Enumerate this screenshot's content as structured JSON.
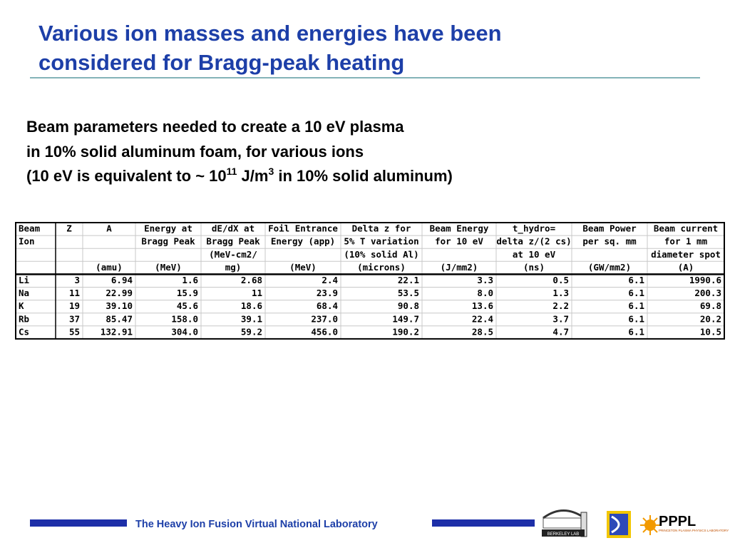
{
  "title": {
    "lines": [
      "Various ion masses and energies have been",
      "considered for Bragg-peak heating"
    ]
  },
  "subtitle": {
    "line1": "Beam parameters needed to create a 10 eV plasma",
    "line2": "in 10% solid aluminum foam, for various ions",
    "line3": {
      "part1": "(10 eV is equivalent to ~ 10",
      "sup1": "11",
      "part2": " J/m",
      "sup2": "3",
      "part3": " in 10% solid aluminum)"
    }
  },
  "table": {
    "header": [
      [
        "Beam",
        "Z",
        "A",
        "Energy at",
        "dE/dX at",
        "Foil Entrance",
        "Delta z for",
        "Beam Energy",
        "t_hydro=",
        "Beam Power",
        "Beam current"
      ],
      [
        "Ion",
        null,
        null,
        "Bragg Peak",
        "Bragg Peak",
        "Energy (app)",
        "5% T variation",
        "for 10 eV",
        "delta z/(2 cs)",
        "per sq. mm",
        "for 1 mm"
      ],
      [
        null,
        null,
        null,
        null,
        "(MeV-cm2/",
        null,
        "(10% solid Al)",
        null,
        "at 10 eV",
        null,
        "diameter spot"
      ],
      [
        null,
        null,
        "(amu)",
        "(MeV)",
        "mg)",
        "(MeV)",
        "(microns)",
        "(J/mm2)",
        "(ns)",
        "(GW/mm2)",
        "(A)"
      ]
    ],
    "rows": [
      [
        "Li",
        "3",
        "6.94",
        "1.6",
        "2.68",
        "2.4",
        "22.1",
        "3.3",
        "0.5",
        "6.1",
        "1990.6"
      ],
      [
        "Na",
        "11",
        "22.99",
        "15.9",
        "11",
        "23.9",
        "53.5",
        "8.0",
        "1.3",
        "6.1",
        "200.3"
      ],
      [
        "K",
        "19",
        "39.10",
        "45.6",
        "18.6",
        "68.4",
        "90.8",
        "13.6",
        "2.2",
        "6.1",
        "69.8"
      ],
      [
        "Rb",
        "37",
        "85.47",
        "158.0",
        "39.1",
        "237.0",
        "149.7",
        "22.4",
        "3.7",
        "6.1",
        "20.2"
      ],
      [
        "Cs",
        "55",
        "132.91",
        "304.0",
        "59.2",
        "456.0",
        "190.2",
        "28.5",
        "4.7",
        "6.1",
        "10.5"
      ]
    ]
  },
  "footer": {
    "text": "The Heavy Ion Fusion Virtual National Laboratory",
    "logos": {
      "berkeley": "BERKELEY LAB",
      "pppl": "PPPL",
      "pppl_sub": "PRINCETON PLASMA PHYSICS LABORATORY"
    }
  }
}
